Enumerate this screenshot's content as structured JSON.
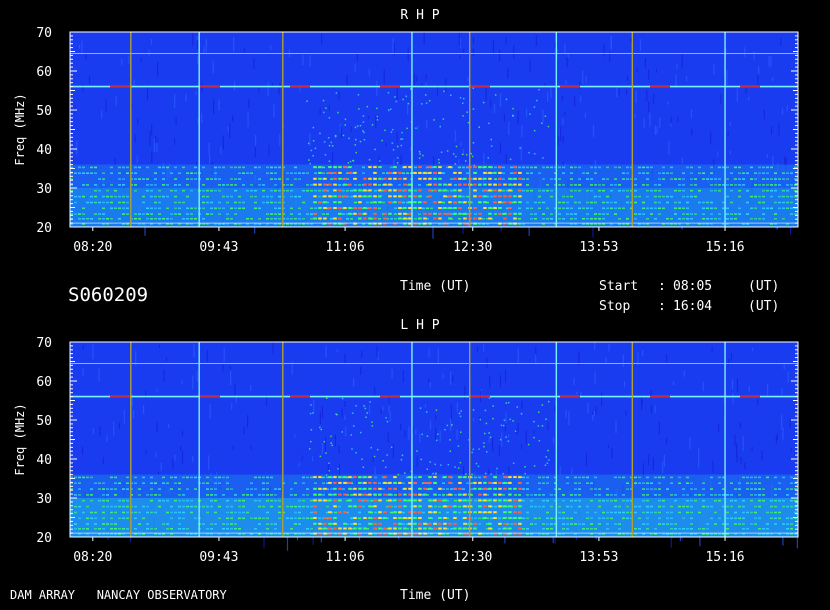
{
  "header": {
    "observation_id": "S060209",
    "start_label": "Start",
    "start_sep": ":",
    "start_time": "08:05",
    "start_unit": "(UT)",
    "stop_label": "Stop",
    "stop_sep": ":",
    "stop_time": "16:04",
    "stop_unit": "(UT)",
    "time_axis_label_top": "Time (UT)"
  },
  "footer": {
    "instrument": "DAM ARRAY   NANCAY OBSERVATORY",
    "time_axis_label_bottom": "Time (UT)"
  },
  "colors": {
    "background": "#000000",
    "spectrum_base": "#1a3cf0",
    "spectrum_deep": "#1420d8",
    "band_cyan": "#30d8ff",
    "band_green": "#40ff60",
    "band_yellow": "#ffe030",
    "interference_line": "#7af2ff",
    "marker_line_olive": "#b0a030",
    "marker_line_red": "#c03040"
  },
  "chart_data": [
    {
      "type": "heatmap",
      "title": "R H P",
      "xlabel": "Time (UT)",
      "ylabel": "Freq (MHz)",
      "x_range": [
        "08:05",
        "16:04"
      ],
      "xticks": [
        "08:20",
        "09:43",
        "11:06",
        "12:30",
        "13:53",
        "15:16"
      ],
      "ylim": [
        20,
        70
      ],
      "yticks": [
        20,
        30,
        40,
        50,
        60,
        70
      ],
      "vertical_markers_ut": [
        "08:45",
        "09:30",
        "10:25",
        "11:50",
        "12:28",
        "13:25",
        "14:15",
        "15:16"
      ]
    },
    {
      "type": "heatmap",
      "title": "L H P",
      "xlabel": "Time (UT)",
      "ylabel": "Freq (MHz)",
      "x_range": [
        "08:05",
        "16:04"
      ],
      "xticks": [
        "08:20",
        "09:43",
        "11:06",
        "12:30",
        "13:53",
        "15:16"
      ],
      "ylim": [
        20,
        70
      ],
      "yticks": [
        20,
        30,
        40,
        50,
        60,
        70
      ],
      "vertical_markers_ut": [
        "08:45",
        "09:30",
        "10:25",
        "11:50",
        "12:28",
        "13:25",
        "14:15",
        "15:16"
      ]
    }
  ]
}
